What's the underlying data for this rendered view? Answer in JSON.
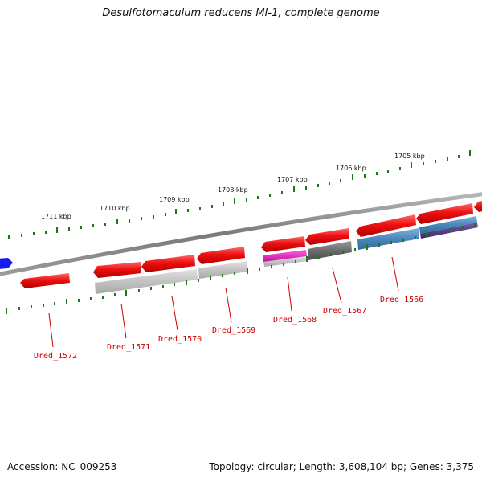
{
  "title": "Desulfotomaculum reducens MI-1, complete genome",
  "footer": {
    "accession": "Accession: NC_009253",
    "summary": "Topology: circular; Length: 3,608,104 bp; Genes: 3,375"
  },
  "scale_labels": [
    "1711 kbp",
    "1710 kbp",
    "1709 kbp",
    "1708 kbp",
    "1707 kbp",
    "1706 kbp",
    "1705 kbp"
  ],
  "gene_labels": [
    "Dred_1572",
    "Dred_1571",
    "Dred_1570",
    "Dred_1569",
    "Dred_1568",
    "Dred_1567",
    "Dred_1566"
  ],
  "colors": {
    "gene_red": "#e01010",
    "backbone": "#8a8a8a",
    "tick_green": "#1a7a1a",
    "label_red": "#cc0000",
    "cog_grey_light": "#c4c4c4",
    "cog_grey_dark": "#707070",
    "cog_magenta": "#e020c0",
    "cog_blue": "#4a86b8",
    "cog_purple": "#5a3a8a",
    "other_strand_gene": "#1a1aee"
  }
}
